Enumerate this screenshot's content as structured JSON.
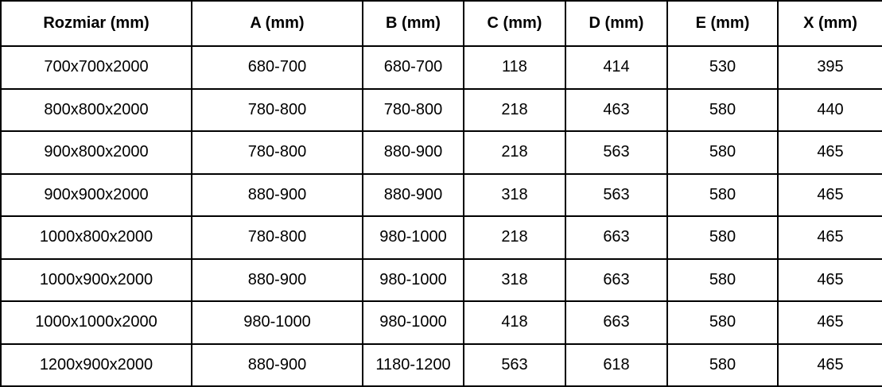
{
  "table": {
    "headers": [
      "Rozmiar (mm)",
      "A (mm)",
      "B (mm)",
      "C (mm)",
      "D (mm)",
      "E (mm)",
      "X (mm)"
    ],
    "rows": [
      [
        "700x700x2000",
        "680-700",
        "680-700",
        "118",
        "414",
        "530",
        "395"
      ],
      [
        "800x800x2000",
        "780-800",
        "780-800",
        "218",
        "463",
        "580",
        "440"
      ],
      [
        "900x800x2000",
        "780-800",
        "880-900",
        "218",
        "563",
        "580",
        "465"
      ],
      [
        "900x900x2000",
        "880-900",
        "880-900",
        "318",
        "563",
        "580",
        "465"
      ],
      [
        "1000x800x2000",
        "780-800",
        "980-1000",
        "218",
        "663",
        "580",
        "465"
      ],
      [
        "1000x900x2000",
        "880-900",
        "980-1000",
        "318",
        "663",
        "580",
        "465"
      ],
      [
        "1000x1000x2000",
        "980-1000",
        "980-1000",
        "418",
        "663",
        "580",
        "465"
      ],
      [
        "1200x900x2000",
        "880-900",
        "1180-1200",
        "563",
        "618",
        "580",
        "465"
      ]
    ],
    "colors": {
      "text": "#000000",
      "grid": "#000000",
      "background": "#ffffff"
    }
  }
}
